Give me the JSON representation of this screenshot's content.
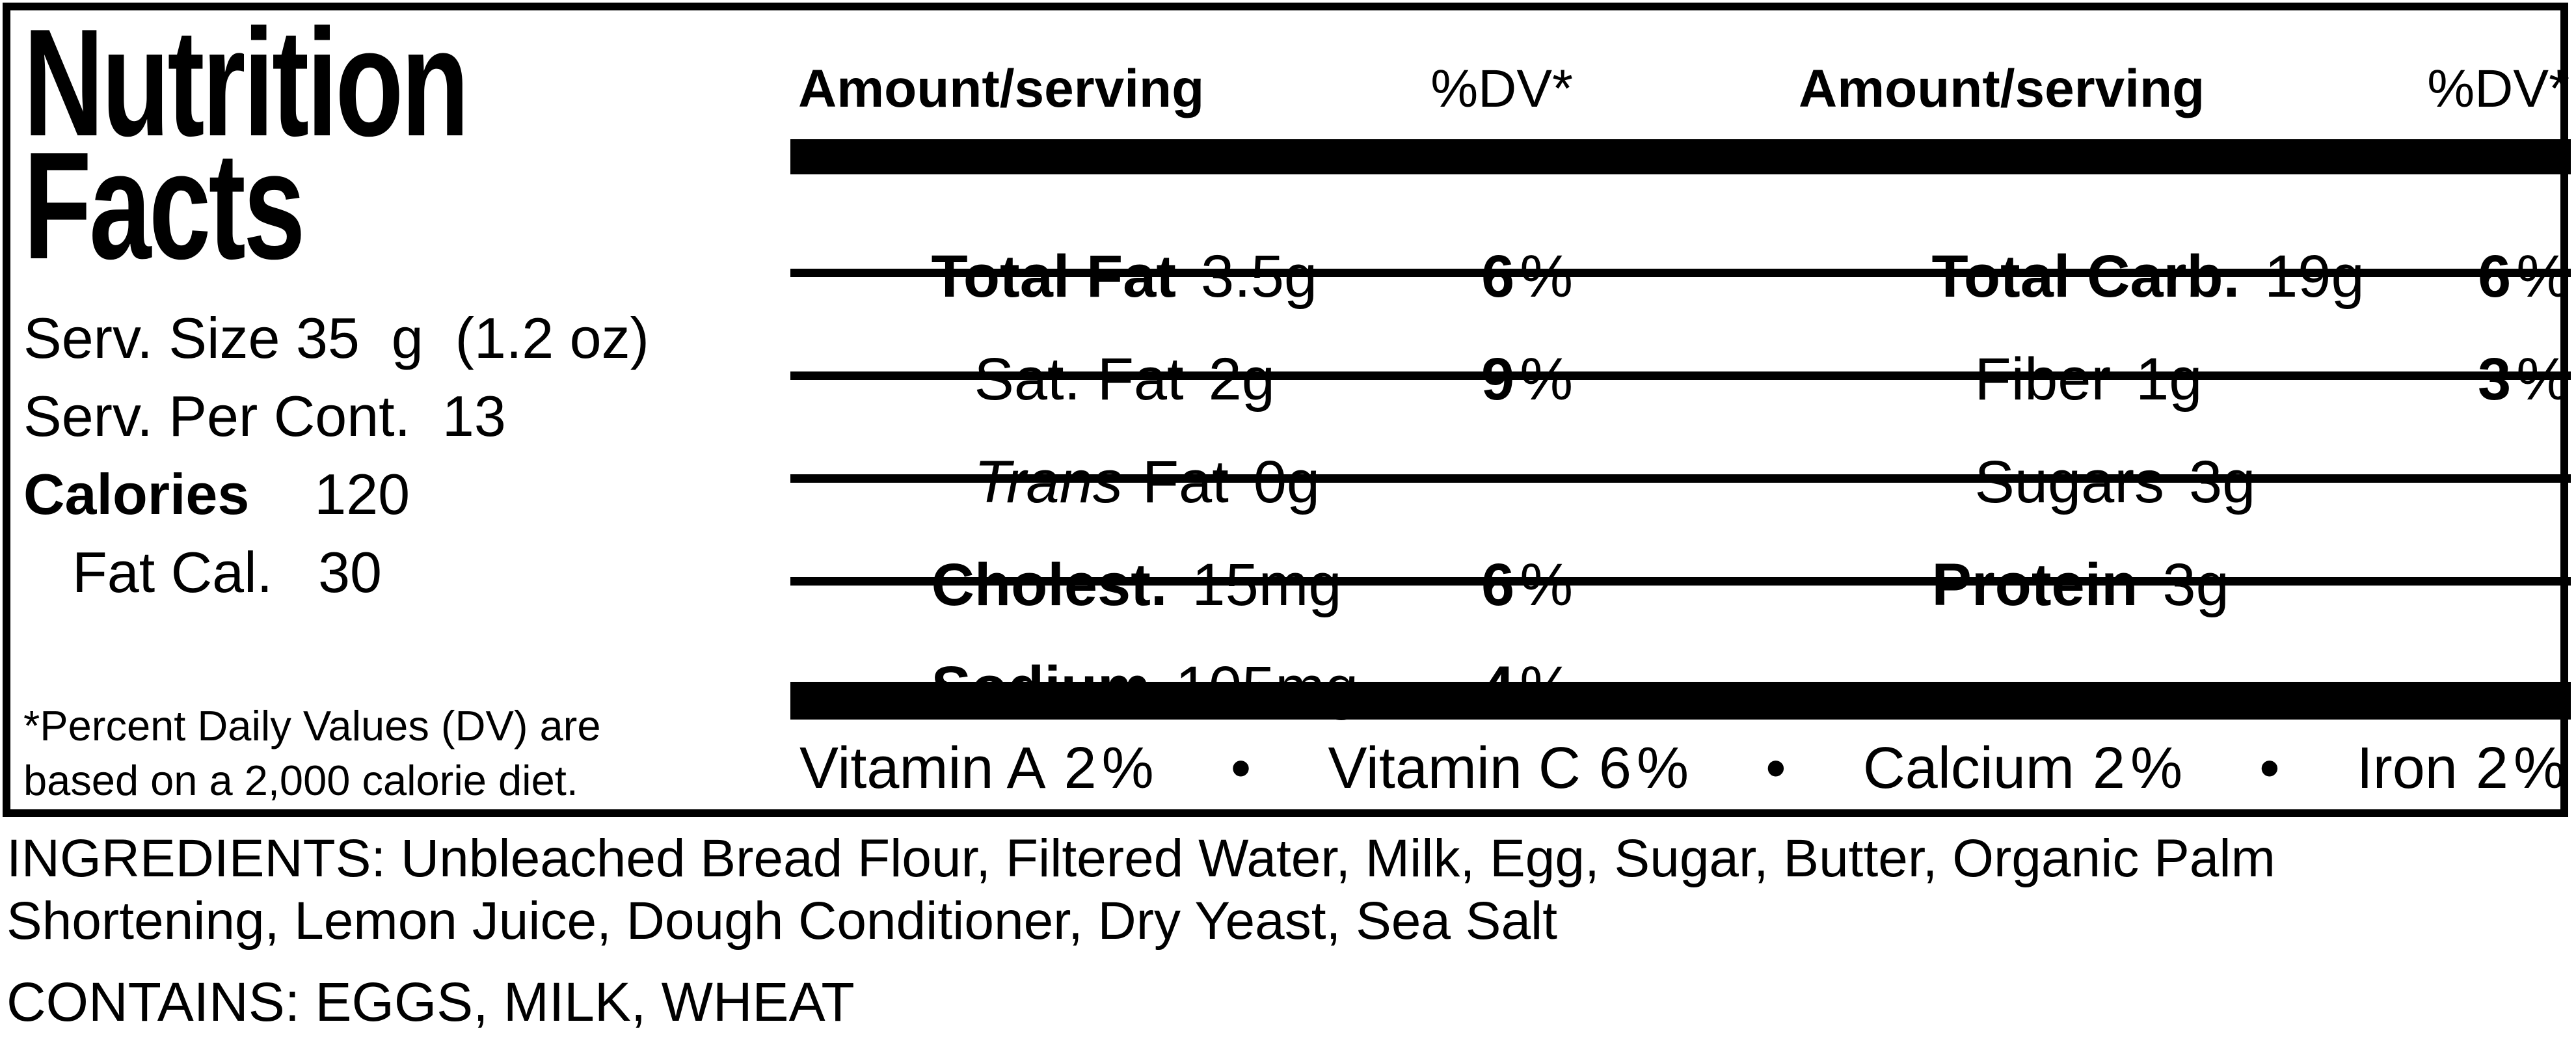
{
  "colors": {
    "text": "#000000",
    "background": "#ffffff"
  },
  "label": {
    "title": {
      "line1": "Nutrition",
      "line2": "Facts"
    },
    "serving": {
      "size": "Serv. Size 35  g  (1.2 oz)",
      "per_container": "Serv. Per Cont.  13",
      "calories_label": "Calories",
      "calories_value": "120",
      "fat_cal_label": "Fat Cal.",
      "fat_cal_value": "30"
    },
    "footnote": "*Percent Daily Values (DV) are\nbased on a 2,000 calorie diet.",
    "table": {
      "percent_sign": "%",
      "header": {
        "amount_left": "Amount/serving",
        "dv_left": "%DV*",
        "amount_right": "Amount/serving",
        "dv_right": "%DV*"
      },
      "left_rows": [
        {
          "label": "Total Fat",
          "value": "3.5g",
          "dv": "6"
        },
        {
          "label": "Sat. Fat",
          "value": "2g",
          "dv": "9"
        },
        {
          "label_italic": "Trans",
          "label": "Fat",
          "value": "0g"
        },
        {
          "label": "Cholest.",
          "value": "15mg",
          "dv": "6"
        },
        {
          "label": "Sodium",
          "value": "105mg",
          "dv": "4"
        }
      ],
      "right_rows": [
        {
          "label": "Total Carb.",
          "value": "19g",
          "dv": "6"
        },
        {
          "label": "Fiber",
          "value": "1g",
          "dv": "3"
        },
        {
          "label": "Sugars",
          "value": "3g"
        },
        {
          "label": "Protein",
          "value": "3g"
        }
      ]
    },
    "vitamins": {
      "bullet": "•",
      "items": [
        {
          "name": "Vitamin A",
          "value": "2"
        },
        {
          "name": "Vitamin C",
          "value": "6"
        },
        {
          "name": "Calcium",
          "value": "2"
        },
        {
          "name": "Iron",
          "value": "2"
        }
      ]
    }
  },
  "ingredients": "INGREDIENTS: Unbleached Bread Flour, Filtered Water, Milk, Egg, Sugar, Butter, Organic Palm\nShortening, Lemon Juice, Dough Conditioner, Dry Yeast, Sea Salt",
  "contains": "CONTAINS: EGGS, MILK, WHEAT"
}
